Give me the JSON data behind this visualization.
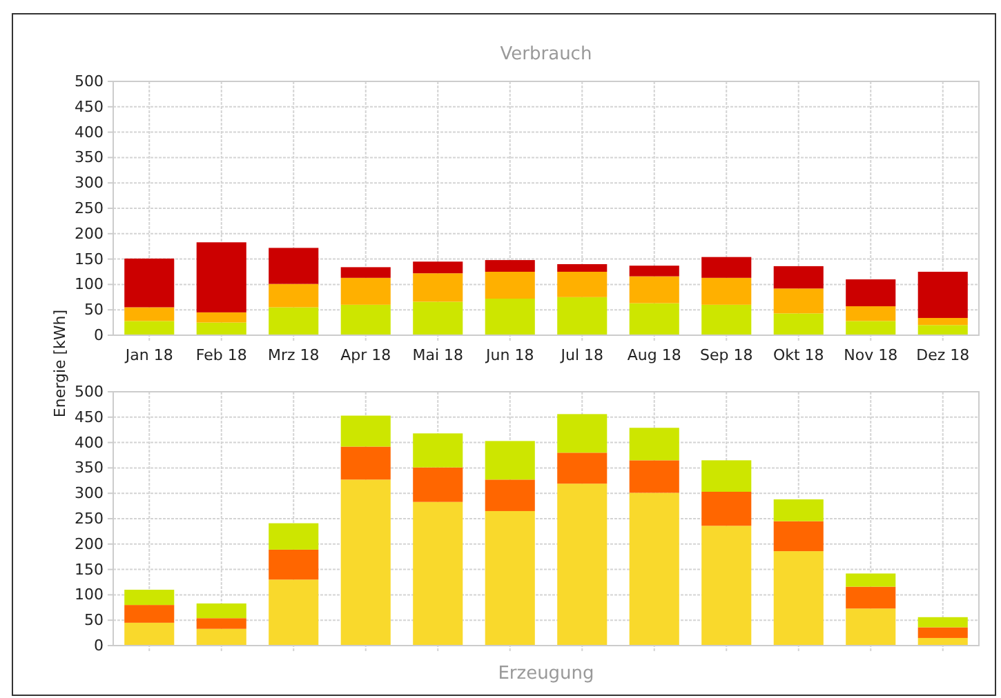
{
  "chart_data": [
    {
      "type": "bar",
      "title": "Verbrauch",
      "ylabel": "Energie [kWh]",
      "stacked": true,
      "grid": true,
      "categories": [
        "Jan 18",
        "Feb 18",
        "Mrz 18",
        "Apr 18",
        "Mai 18",
        "Jun 18",
        "Jul 18",
        "Aug 18",
        "Sep 18",
        "Okt 18",
        "Nov 18",
        "Dez 18"
      ],
      "ylim": [
        0,
        500
      ],
      "yticks": [
        0,
        50,
        100,
        150,
        200,
        250,
        300,
        350,
        400,
        450,
        500
      ],
      "series": [
        {
          "color": "#cde600",
          "values": [
            28,
            25,
            55,
            60,
            66,
            72,
            75,
            63,
            60,
            43,
            28,
            20
          ]
        },
        {
          "color": "#ffb000",
          "values": [
            27,
            20,
            46,
            53,
            56,
            53,
            50,
            53,
            53,
            49,
            29,
            14
          ]
        },
        {
          "color": "#cc0000",
          "values": [
            96,
            138,
            71,
            21,
            23,
            23,
            15,
            21,
            41,
            44,
            53,
            91
          ]
        }
      ]
    },
    {
      "type": "bar",
      "title": "Erzeugung",
      "stacked": true,
      "grid": true,
      "tick_labels": "y",
      "categories": [
        null,
        null,
        null,
        null,
        null,
        null,
        null,
        null,
        null,
        null,
        null,
        null
      ],
      "ylim": [
        0,
        500
      ],
      "yticks": [
        0,
        50,
        100,
        150,
        200,
        250,
        300,
        350,
        400,
        450,
        500
      ],
      "series": [
        {
          "color": "#f9d92c",
          "values": [
            45,
            33,
            130,
            327,
            283,
            265,
            319,
            301,
            236,
            186,
            73,
            15
          ]
        },
        {
          "color": "#ff6600",
          "values": [
            35,
            21,
            59,
            65,
            68,
            62,
            61,
            64,
            67,
            59,
            43,
            21
          ]
        },
        {
          "color": "#cde600",
          "values": [
            30,
            29,
            52,
            61,
            67,
            76,
            76,
            64,
            62,
            43,
            26,
            20
          ]
        }
      ]
    }
  ]
}
